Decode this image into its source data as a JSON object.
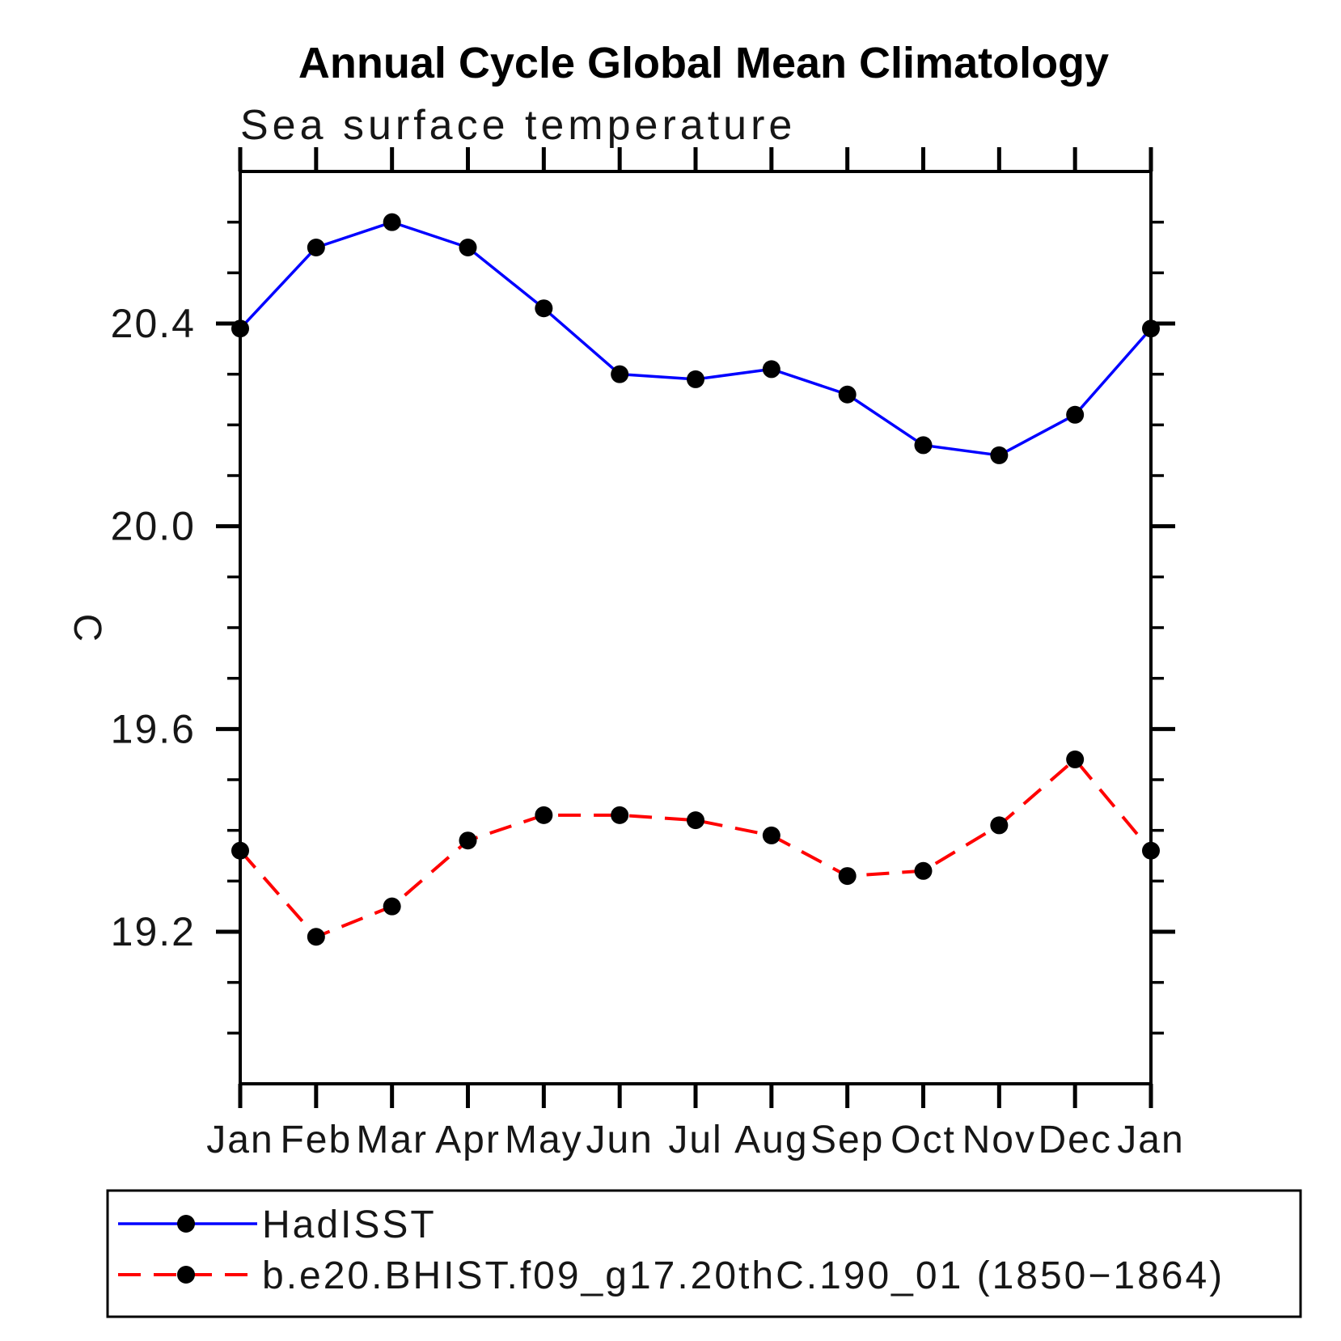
{
  "chart_data": {
    "type": "line",
    "title": "Annual Cycle Global Mean Climatology",
    "subtitle": "Sea surface temperature",
    "ylabel": "C",
    "xlabel": "",
    "categories": [
      "Jan",
      "Feb",
      "Mar",
      "Apr",
      "May",
      "Jun",
      "Jul",
      "Aug",
      "Sep",
      "Oct",
      "Nov",
      "Dec",
      "Jan"
    ],
    "ylim": [
      18.9,
      20.7
    ],
    "y_major_ticks": [
      20.4,
      20.0,
      19.6,
      19.2
    ],
    "y_minor_step": 0.1,
    "grid": "off",
    "legend_position": "bottom-left-box",
    "marker": {
      "shape": "circle",
      "color": "#000000",
      "radius_px": 11
    },
    "series": [
      {
        "name": "HadISST",
        "color": "#0000ff",
        "line_style": "solid",
        "values": [
          20.39,
          20.55,
          20.6,
          20.55,
          20.43,
          20.3,
          20.29,
          20.31,
          20.26,
          20.16,
          20.14,
          20.22,
          20.39
        ]
      },
      {
        "name": "b.e20.BHIST.f09_g17.20thC.190_01 (1850−1864)",
        "color": "#ff0000",
        "line_style": "dashed",
        "values": [
          19.36,
          19.19,
          19.25,
          19.38,
          19.43,
          19.43,
          19.42,
          19.39,
          19.31,
          19.32,
          19.41,
          19.54,
          19.36
        ]
      }
    ],
    "axis_color": "#000000",
    "background_color": "#ffffff"
  }
}
